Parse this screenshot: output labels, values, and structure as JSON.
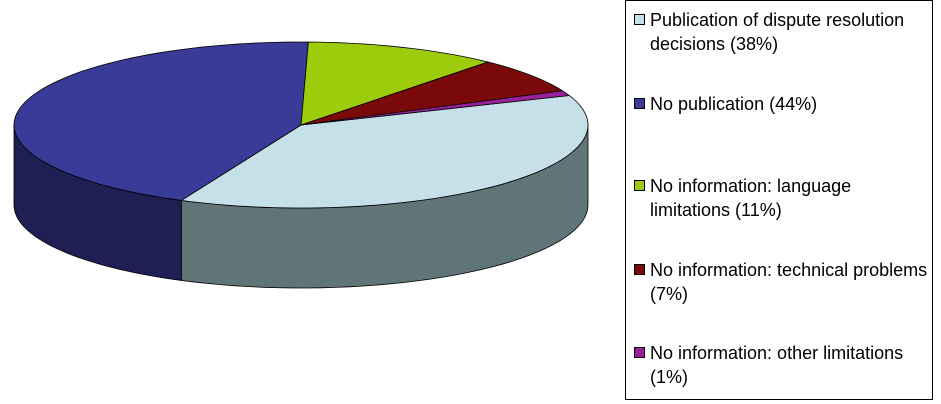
{
  "chart_data": {
    "type": "pie",
    "style": "3d",
    "title": "",
    "legend_position": "right",
    "slices": [
      {
        "label": "Publication of dispute resolution decisions",
        "value": 38,
        "legend": "Publication of dispute resolution decisions (38%)",
        "color": "#c5e0e8",
        "side_color": "#607578"
      },
      {
        "label": "No publication",
        "value": 44,
        "legend": "No publication (44%)",
        "color": "#3a3a99",
        "side_color": "#1f1f55"
      },
      {
        "label": "No information: language limitations",
        "value": 11,
        "legend": "No information: language limitations (11%)",
        "color": "#9dcc0c",
        "side_color": "#5c7808"
      },
      {
        "label": "No information: technical problems",
        "value": 7,
        "legend": "No information: technical problems (7%)",
        "color": "#7a0a0a",
        "side_color": "#4a0505"
      },
      {
        "label": "No information: other limitations",
        "value": 1,
        "legend": "No information: other limitations (1%)",
        "color": "#9a209a",
        "side_color": "#5a105a"
      }
    ]
  }
}
